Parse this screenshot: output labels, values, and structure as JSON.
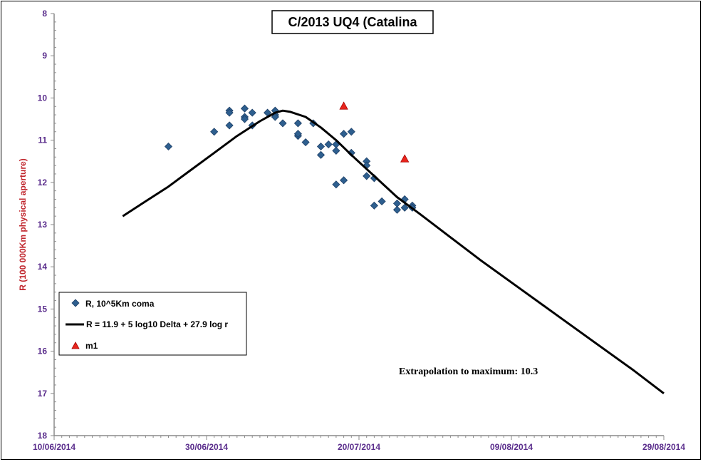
{
  "chart_data": {
    "type": "scatter",
    "title": "C/2013 UQ4 (Catalina",
    "xlabel": "",
    "ylabel": "R (100 000Km physical aperture)",
    "x_type": "date",
    "xlim": [
      "2014-06-10",
      "2014-08-29"
    ],
    "ylim": [
      18,
      8
    ],
    "y_inverted": true,
    "xticks": [
      "10/06/2014",
      "30/06/2014",
      "20/07/2014",
      "09/08/2014",
      "29/08/2014"
    ],
    "yticks": [
      "8",
      "9",
      "10",
      "11",
      "12",
      "13",
      "14",
      "15",
      "16",
      "17",
      "18"
    ],
    "grid": false,
    "legend_position": "bottom-left",
    "series": [
      {
        "name": "R, 10^5Km coma",
        "kind": "scatter",
        "marker": "diamond",
        "color": "#2e5f8f",
        "points": [
          [
            "2014-06-25",
            11.15
          ],
          [
            "2014-07-01",
            10.8
          ],
          [
            "2014-07-03",
            10.3
          ],
          [
            "2014-07-03",
            10.35
          ],
          [
            "2014-07-03",
            10.65
          ],
          [
            "2014-07-05",
            10.45
          ],
          [
            "2014-07-05",
            10.5
          ],
          [
            "2014-07-05",
            10.25
          ],
          [
            "2014-07-06",
            10.35
          ],
          [
            "2014-07-06",
            10.65
          ],
          [
            "2014-07-08",
            10.35
          ],
          [
            "2014-07-09",
            10.4
          ],
          [
            "2014-07-09",
            10.45
          ],
          [
            "2014-07-09",
            10.3
          ],
          [
            "2014-07-10",
            10.6
          ],
          [
            "2014-07-12",
            10.6
          ],
          [
            "2014-07-12",
            10.9
          ],
          [
            "2014-07-12",
            10.85
          ],
          [
            "2014-07-13",
            11.05
          ],
          [
            "2014-07-14",
            10.6
          ],
          [
            "2014-07-15",
            11.15
          ],
          [
            "2014-07-15",
            11.35
          ],
          [
            "2014-07-16",
            11.1
          ],
          [
            "2014-07-17",
            11.25
          ],
          [
            "2014-07-17",
            11.1
          ],
          [
            "2014-07-17",
            12.05
          ],
          [
            "2014-07-18",
            11.95
          ],
          [
            "2014-07-18",
            10.85
          ],
          [
            "2014-07-19",
            10.8
          ],
          [
            "2014-07-19",
            11.3
          ],
          [
            "2014-07-21",
            11.5
          ],
          [
            "2014-07-21",
            11.6
          ],
          [
            "2014-07-21",
            11.85
          ],
          [
            "2014-07-22",
            11.9
          ],
          [
            "2014-07-22",
            12.55
          ],
          [
            "2014-07-23",
            12.45
          ],
          [
            "2014-07-25",
            12.5
          ],
          [
            "2014-07-25",
            12.65
          ],
          [
            "2014-07-26",
            12.4
          ],
          [
            "2014-07-26",
            12.6
          ],
          [
            "2014-07-27",
            12.55
          ],
          [
            "2014-07-27",
            12.6
          ]
        ]
      },
      {
        "name": "R = 11.9 + 5 log10 Delta + 27.9  log r",
        "kind": "line",
        "color": "#000000",
        "points": [
          [
            "2014-06-19",
            12.8
          ],
          [
            "2014-06-22",
            12.45
          ],
          [
            "2014-06-25",
            12.1
          ],
          [
            "2014-06-28",
            11.7
          ],
          [
            "2014-07-01",
            11.3
          ],
          [
            "2014-07-04",
            10.9
          ],
          [
            "2014-07-07",
            10.55
          ],
          [
            "2014-07-09",
            10.35
          ],
          [
            "2014-07-10",
            10.3
          ],
          [
            "2014-07-11",
            10.33
          ],
          [
            "2014-07-13",
            10.45
          ],
          [
            "2014-07-15",
            10.7
          ],
          [
            "2014-07-17",
            11.0
          ],
          [
            "2014-07-19",
            11.35
          ],
          [
            "2014-07-22",
            11.85
          ],
          [
            "2014-07-25",
            12.35
          ],
          [
            "2014-07-28",
            12.75
          ],
          [
            "2014-08-01",
            13.3
          ],
          [
            "2014-08-05",
            13.85
          ],
          [
            "2014-08-10",
            14.5
          ],
          [
            "2014-08-15",
            15.15
          ],
          [
            "2014-08-20",
            15.8
          ],
          [
            "2014-08-25",
            16.45
          ],
          [
            "2014-08-29",
            17.0
          ]
        ]
      },
      {
        "name": "m1",
        "kind": "scatter",
        "marker": "triangle",
        "color": "#e8251c",
        "points": [
          [
            "2014-07-18",
            10.2
          ],
          [
            "2014-07-26",
            11.45
          ]
        ]
      }
    ],
    "annotations": [
      {
        "text": "Extrapolation  to maximum:  10.3"
      }
    ]
  }
}
